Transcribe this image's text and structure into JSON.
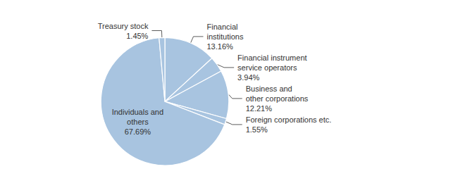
{
  "chart_data": {
    "type": "pie",
    "categories": [
      "Financial\ninstitutions",
      "Financial instrument\nservice operators",
      "Business and\nother corporations",
      "Foreign corporations etc.",
      "Individuals and\nothers",
      "Treasury stock"
    ],
    "values": [
      13.16,
      3.94,
      12.21,
      1.55,
      67.69,
      1.45
    ],
    "value_labels": [
      "13.16%",
      "3.94%",
      "12.21%",
      "1.55%",
      "67.69%",
      "1.45%"
    ],
    "color": "#a8c4e0",
    "data_labels": true
  }
}
